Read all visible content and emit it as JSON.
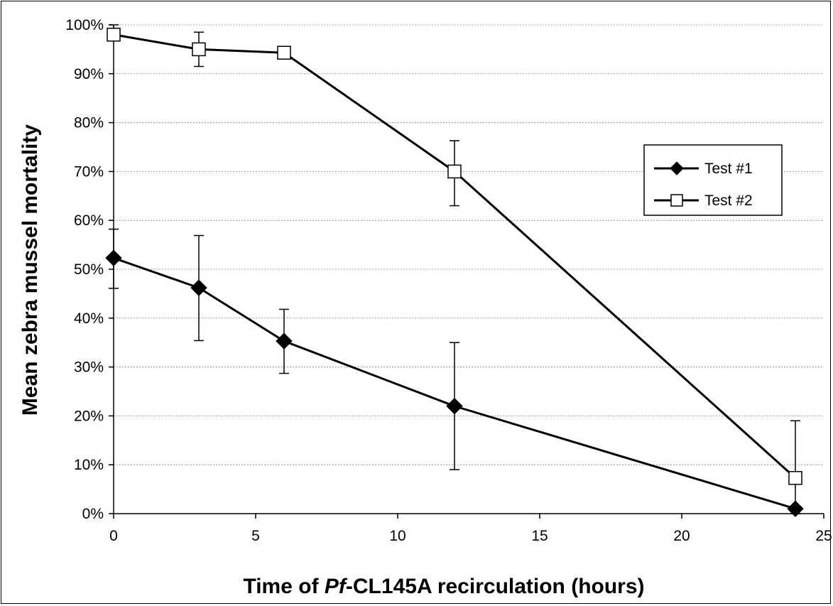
{
  "chart_data": {
    "type": "line",
    "title": "",
    "xlabel": {
      "prefix": "Time of ",
      "italic": "Pf",
      "suffix": "-CL145A recirculation (hours)"
    },
    "ylabel": "Mean zebra mussel mortality",
    "xlim": [
      0,
      25
    ],
    "ylim": [
      0,
      100
    ],
    "x_ticks": [
      "0",
      "5",
      "10",
      "15",
      "20",
      "25"
    ],
    "y_ticks": [
      "0%",
      "10%",
      "20%",
      "30%",
      "40%",
      "50%",
      "60%",
      "70%",
      "80%",
      "90%",
      "100%"
    ],
    "grid": "horizontal",
    "legend_position": "right",
    "series": [
      {
        "name": "Test #1",
        "marker": "diamond-filled",
        "x": [
          0,
          3,
          6,
          12,
          24
        ],
        "y": [
          52.3,
          46.2,
          35.3,
          22.0,
          1.0
        ],
        "err_low": [
          6.2,
          10.8,
          6.6,
          13.0,
          1.0
        ],
        "err_high": [
          5.9,
          10.7,
          6.5,
          13.0,
          0
        ]
      },
      {
        "name": "Test #2",
        "marker": "square-open",
        "x": [
          0,
          3,
          6,
          12,
          24
        ],
        "y": [
          98.0,
          95.0,
          94.3,
          70.0,
          7.3
        ],
        "err_low": [
          0,
          3.5,
          0,
          7.0,
          7.3
        ],
        "err_high": [
          2.0,
          3.5,
          0,
          6.3,
          11.7
        ]
      }
    ]
  }
}
